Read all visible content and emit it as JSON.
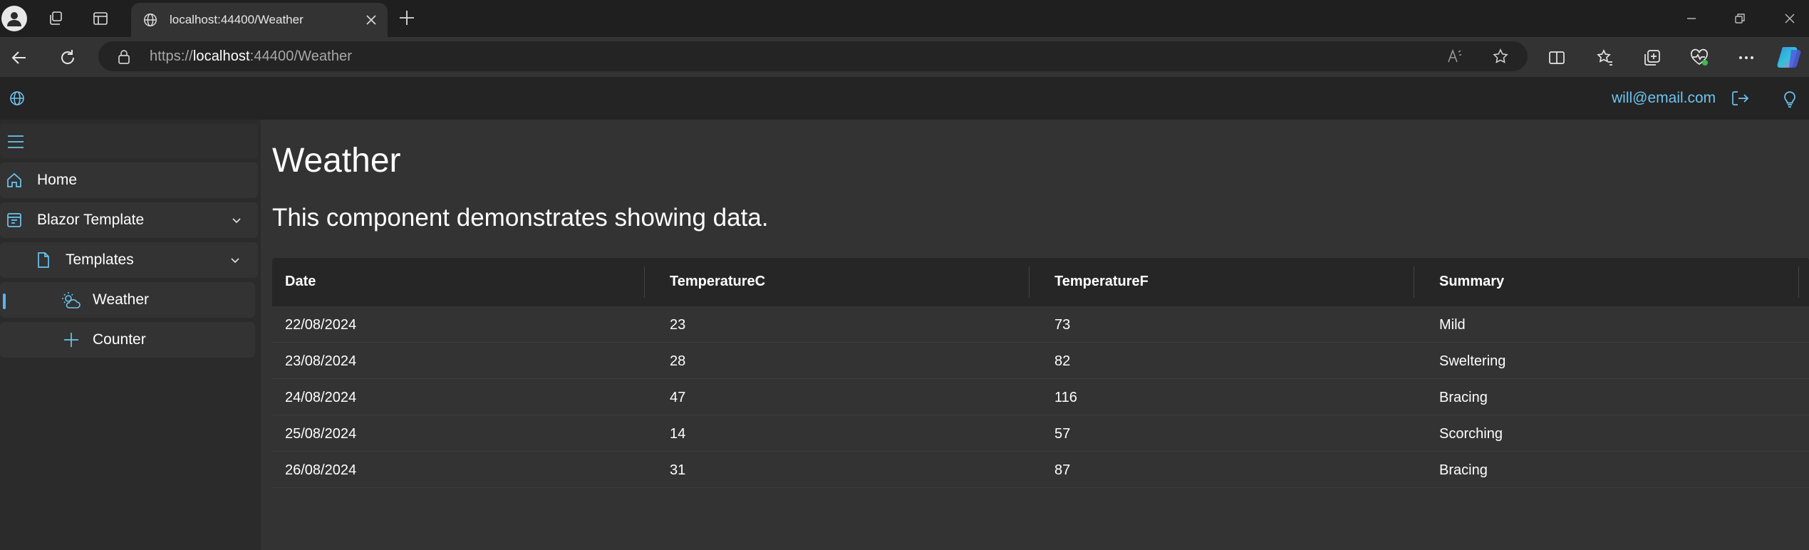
{
  "browser": {
    "tab_title": "localhost:44400/Weather",
    "url_scheme": "https://",
    "url_host": "localhost",
    "url_rest": ":44400/Weather"
  },
  "header": {
    "user_email": "will@email.com"
  },
  "nav": {
    "home": "Home",
    "blazor_template": "Blazor Template",
    "templates": "Templates",
    "weather": "Weather",
    "counter": "Counter"
  },
  "page": {
    "title": "Weather",
    "subtitle": "This component demonstrates showing data."
  },
  "table": {
    "columns": [
      "Date",
      "TemperatureC",
      "TemperatureF",
      "Summary"
    ],
    "rows": [
      [
        "22/08/2024",
        "23",
        "73",
        "Mild"
      ],
      [
        "23/08/2024",
        "28",
        "82",
        "Sweltering"
      ],
      [
        "24/08/2024",
        "47",
        "116",
        "Bracing"
      ],
      [
        "25/08/2024",
        "14",
        "57",
        "Scorching"
      ],
      [
        "26/08/2024",
        "31",
        "87",
        "Bracing"
      ]
    ]
  },
  "colors": {
    "accent": "#6cc4f0",
    "active_indicator": "#5ab4f0"
  }
}
